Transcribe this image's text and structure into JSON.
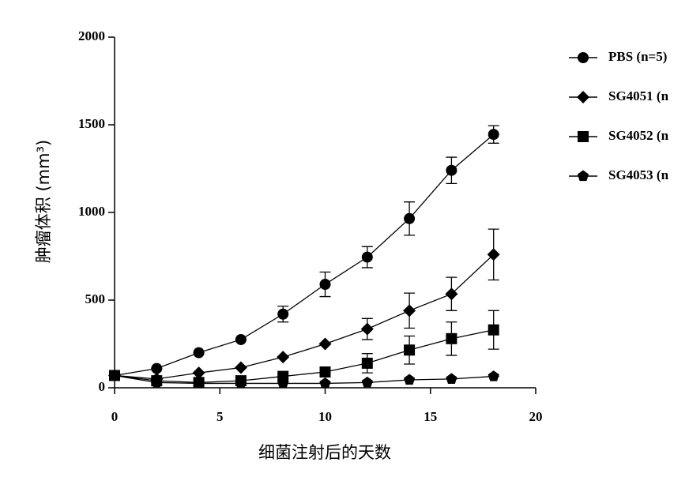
{
  "chart_data": {
    "type": "line",
    "x_label": "细菌注射后的天数",
    "y_label": "肿瘤体积 (mm³)",
    "x": [
      0,
      2,
      4,
      6,
      8,
      10,
      12,
      14,
      16,
      18
    ],
    "xlim": [
      0,
      20
    ],
    "xticks": [
      0,
      5,
      10,
      15,
      20
    ],
    "ylim": [
      0,
      2000
    ],
    "yticks": [
      0,
      500,
      1000,
      1500,
      2000
    ],
    "grid": false,
    "legend": "right",
    "series": [
      {
        "name": "PBS (n=5)",
        "color": "#000000",
        "marker": "circle",
        "values": [
          70,
          110,
          200,
          275,
          420,
          590,
          745,
          965,
          1240,
          1445
        ],
        "errors": [
          0,
          0,
          0,
          0,
          45,
          70,
          60,
          95,
          75,
          50
        ]
      },
      {
        "name": "SG4051 (n",
        "color": "#000000",
        "marker": "diamond",
        "values": [
          70,
          50,
          85,
          115,
          175,
          250,
          335,
          440,
          535,
          760
        ],
        "errors": [
          0,
          0,
          0,
          0,
          0,
          0,
          60,
          100,
          95,
          145
        ]
      },
      {
        "name": "SG4052 (n",
        "color": "#000000",
        "marker": "square",
        "values": [
          70,
          40,
          30,
          40,
          65,
          90,
          140,
          215,
          280,
          330
        ],
        "errors": [
          0,
          0,
          0,
          0,
          0,
          0,
          55,
          80,
          95,
          110
        ]
      },
      {
        "name": "SG4053 (n",
        "color": "#000000",
        "marker": "pentagon",
        "values": [
          70,
          30,
          25,
          25,
          25,
          25,
          30,
          45,
          50,
          65
        ],
        "errors": [
          0,
          0,
          0,
          0,
          0,
          0,
          0,
          0,
          0,
          0
        ]
      }
    ]
  }
}
